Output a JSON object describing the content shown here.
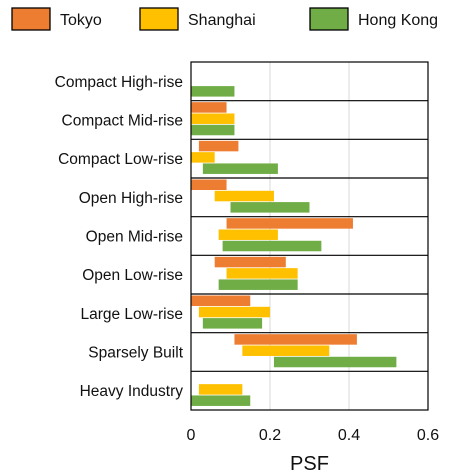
{
  "chart_data": {
    "type": "bar",
    "orientation": "horizontal",
    "categories": [
      "Compact High-rise",
      "Compact Mid-rise",
      "Compact Low-rise",
      "Open High-rise",
      "Open Mid-rise",
      "Open Low-rise",
      "Large Low-rise",
      "Sparsely Built",
      "Heavy Industry"
    ],
    "series": [
      {
        "name": "Tokyo",
        "color": "#ED7D31",
        "ranges": [
          null,
          [
            0.0,
            0.09
          ],
          [
            0.02,
            0.12
          ],
          [
            0.0,
            0.09
          ],
          [
            0.09,
            0.41
          ],
          [
            0.06,
            0.24
          ],
          [
            0.0,
            0.15
          ],
          [
            0.11,
            0.42
          ],
          null
        ]
      },
      {
        "name": "Shanghai",
        "color": "#FFC000",
        "ranges": [
          null,
          [
            0.0,
            0.11
          ],
          [
            0.0,
            0.06
          ],
          [
            0.06,
            0.21
          ],
          [
            0.07,
            0.22
          ],
          [
            0.09,
            0.27
          ],
          [
            0.02,
            0.2
          ],
          [
            0.13,
            0.35
          ],
          [
            0.02,
            0.13
          ]
        ]
      },
      {
        "name": "Hong Kong",
        "color": "#70AD47",
        "ranges": [
          [
            0.0,
            0.11
          ],
          [
            0.0,
            0.11
          ],
          [
            0.03,
            0.22
          ],
          [
            0.1,
            0.3
          ],
          [
            0.08,
            0.33
          ],
          [
            0.07,
            0.27
          ],
          [
            0.03,
            0.18
          ],
          [
            0.21,
            0.52
          ],
          [
            0.0,
            0.15
          ]
        ]
      }
    ],
    "xlabel": "PSF",
    "ylabel": "",
    "title": "",
    "xlim": [
      0,
      0.6
    ],
    "xticks": [
      "0",
      "0.2",
      "0.4",
      "0.6"
    ],
    "grid": "vertical",
    "legend": "top"
  }
}
